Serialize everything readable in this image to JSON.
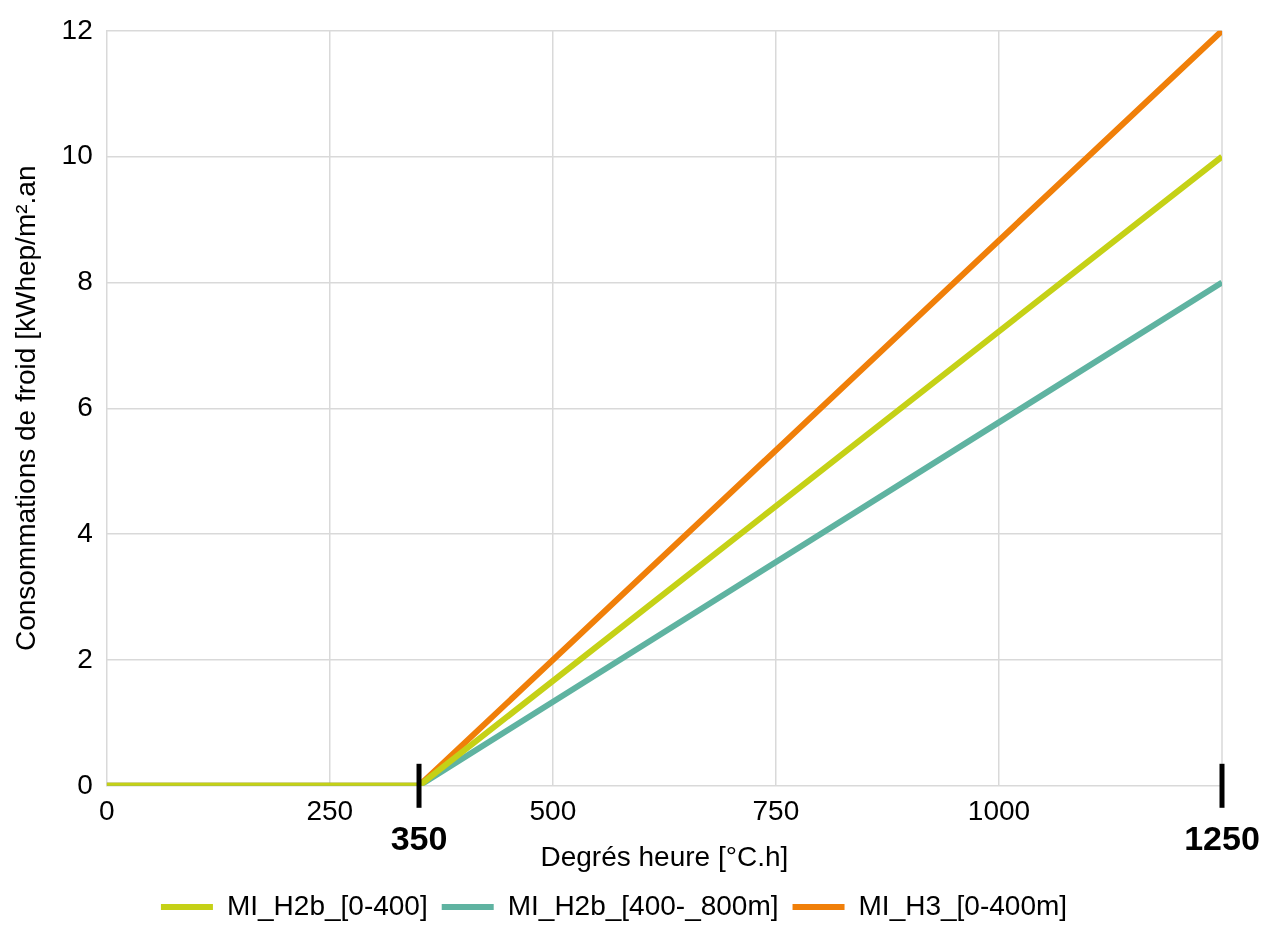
{
  "chart_data": {
    "type": "line",
    "xlabel": "Degrés heure [°C.h]",
    "ylabel": "Consommations de froid [kWhep/m².an",
    "x": [
      0,
      350,
      1250
    ],
    "series": [
      {
        "name": "MI_H2b_[0-400]",
        "color": "#c5d116",
        "values": [
          0,
          0,
          10
        ]
      },
      {
        "name": "MI_H2b_[400-_800m]",
        "color": "#5fb3a1",
        "values": [
          0,
          0,
          8
        ]
      },
      {
        "name": "MI_H3_[0-400m]",
        "color": "#f07f09",
        "values": [
          0,
          0,
          12
        ]
      }
    ],
    "xlim": [
      0,
      1250
    ],
    "xticks": [
      0,
      250,
      500,
      750,
      1000
    ],
    "ylim": [
      0,
      12
    ],
    "yticks": [
      0,
      2,
      4,
      6,
      8,
      10,
      12
    ],
    "annotations": [
      {
        "text": "350",
        "x": 350,
        "y": 0
      },
      {
        "text": "1250",
        "x": 1250
      }
    ],
    "grid": true,
    "legend": "bottom",
    "marker": "none",
    "line_style": "solid"
  }
}
